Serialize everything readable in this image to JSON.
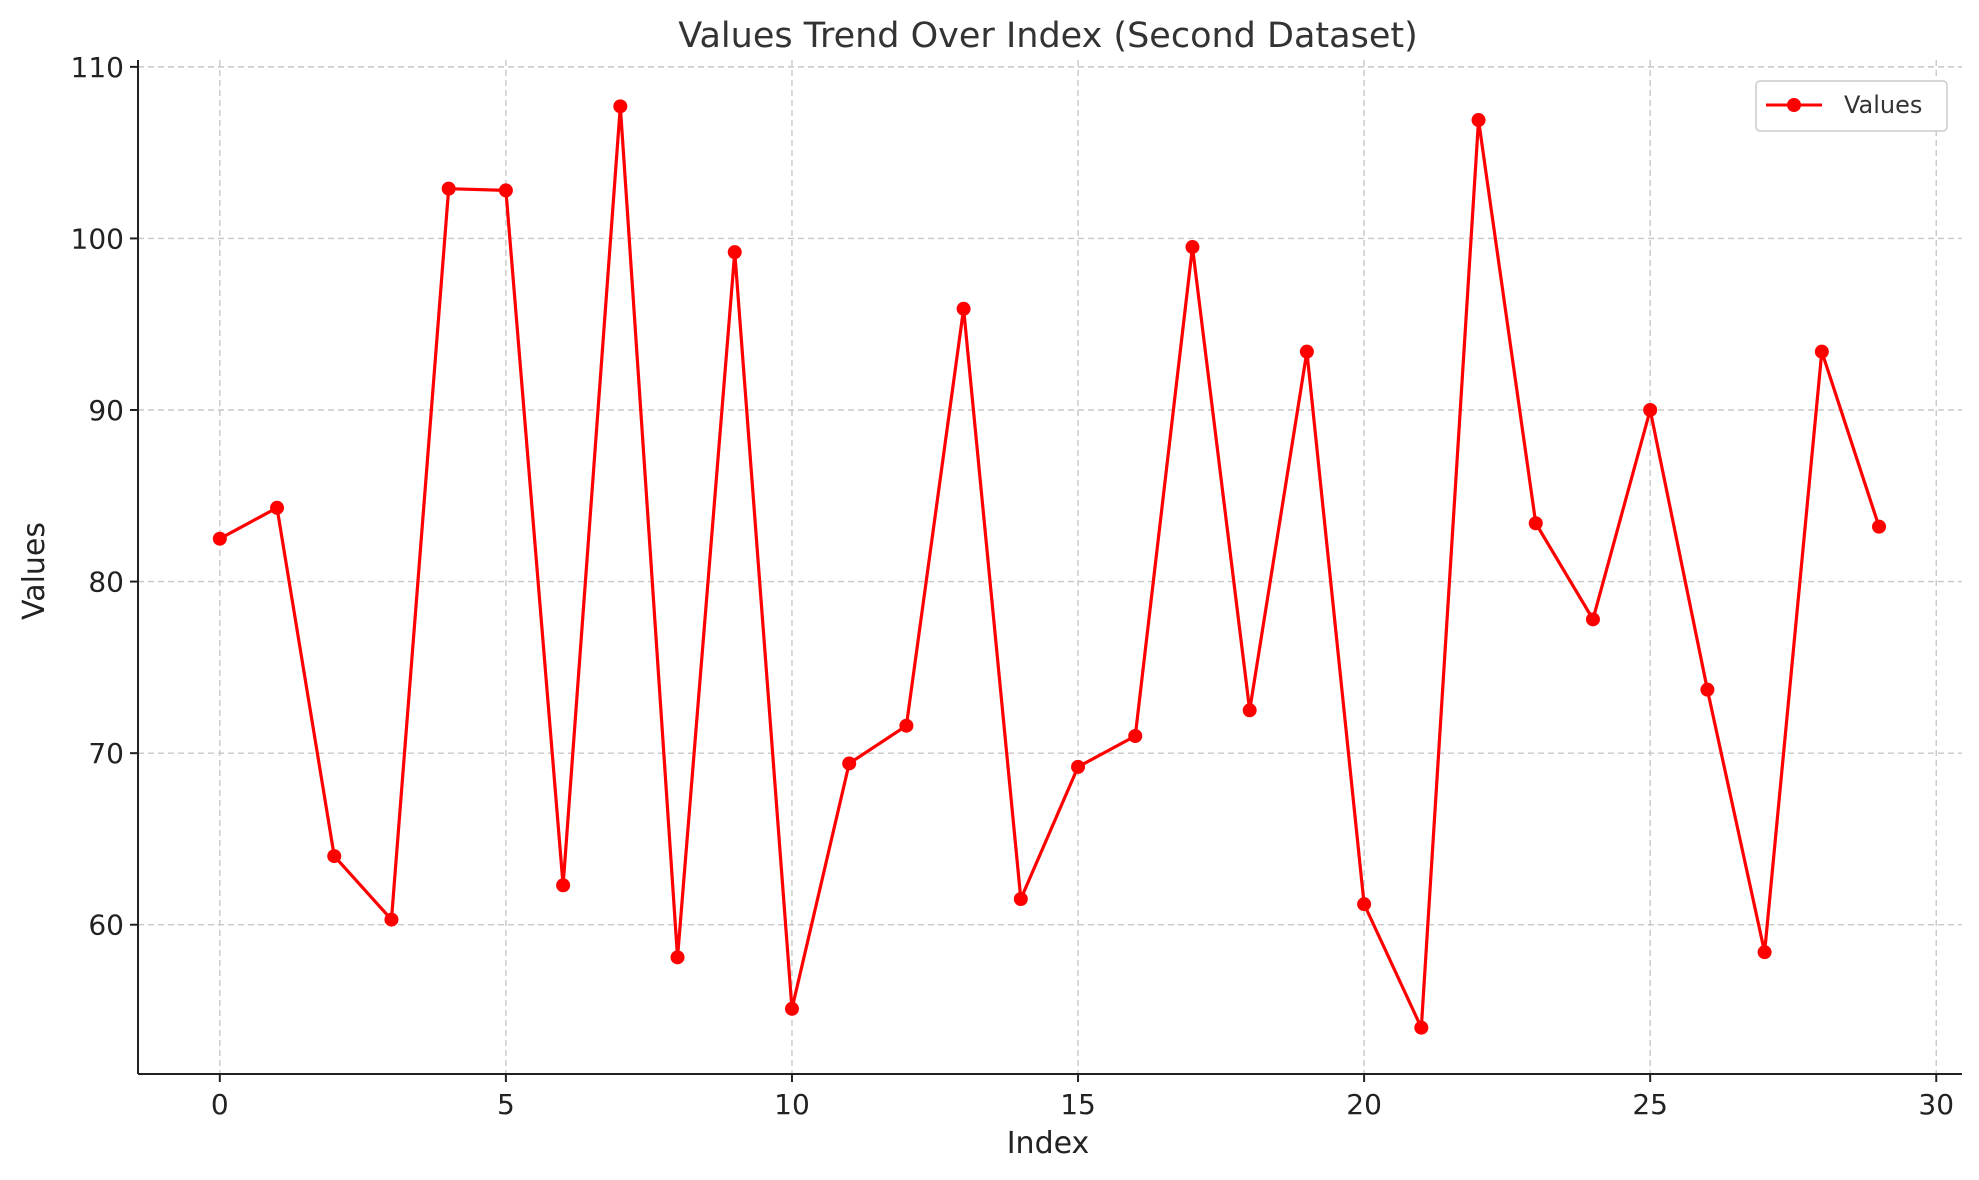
{
  "chart_data": {
    "type": "line",
    "title": "Values Trend Over Index (Second Dataset)",
    "xlabel": "Index",
    "ylabel": "Values",
    "xlim": [
      -1.43,
      30.45
    ],
    "ylim": [
      51.3,
      110.4
    ],
    "x_ticks": [
      0,
      5,
      10,
      15,
      20,
      25,
      30
    ],
    "y_ticks": [
      60,
      70,
      80,
      90,
      100,
      110
    ],
    "grid": true,
    "legend_position": "top-right",
    "series": [
      {
        "name": "Values",
        "color": "#ff0000",
        "marker": "circle",
        "x": [
          0,
          1,
          2,
          3,
          4,
          5,
          6,
          7,
          8,
          9,
          10,
          11,
          12,
          13,
          14,
          15,
          16,
          17,
          18,
          19,
          20,
          21,
          22,
          23,
          24,
          25,
          26,
          27,
          28,
          29
        ],
        "y": [
          82.5,
          84.3,
          64.0,
          60.3,
          102.9,
          102.8,
          62.3,
          107.7,
          58.1,
          99.2,
          55.1,
          69.4,
          71.6,
          95.9,
          61.5,
          69.2,
          71.0,
          99.5,
          72.5,
          93.4,
          61.2,
          54.0,
          106.9,
          83.4,
          77.8,
          90.0,
          73.7,
          58.4,
          93.4,
          83.2
        ]
      }
    ]
  }
}
